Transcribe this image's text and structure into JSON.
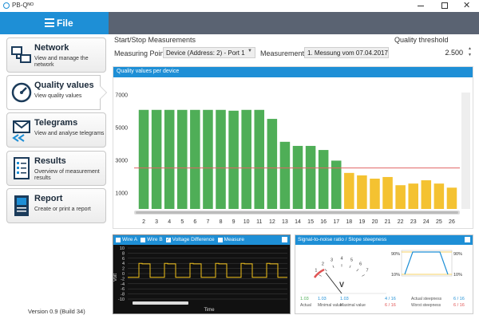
{
  "window": {
    "title": "PB-Qᴺᴼ"
  },
  "file_label": "File",
  "sidebar": [
    {
      "title": "Network",
      "subtitle": "View and manage the network"
    },
    {
      "title": "Quality values",
      "subtitle": "View quality values"
    },
    {
      "title": "Telegrams",
      "subtitle": "View and analyse telegrams"
    },
    {
      "title": "Results",
      "subtitle": "Overview of measurement results"
    },
    {
      "title": "Report",
      "subtitle": "Create or print a report"
    }
  ],
  "version": "Version 0.9 (Build 34)",
  "startstop_label": "Start/Stop Measurements",
  "measuring_point_label": "Measuring Point",
  "measuring_point_value": "Device (Address: 2) - Port 1",
  "measurement_label": "Measurement",
  "measurement_value": "1. Messung vom 07.04.2017",
  "quality_threshold_label": "Quality threshold",
  "quality_threshold_value": "2.500",
  "chart_data": {
    "type": "bar",
    "title": "Quality values per device",
    "categories": [
      "2",
      "3",
      "4",
      "5",
      "6",
      "7",
      "8",
      "9",
      "10",
      "11",
      "12",
      "13",
      "14",
      "15",
      "16",
      "17",
      "18",
      "19",
      "20",
      "21",
      "22",
      "23",
      "24",
      "25",
      "26"
    ],
    "values": [
      6050,
      6050,
      6050,
      6050,
      6050,
      6050,
      6050,
      6000,
      6050,
      6050,
      5500,
      4100,
      3850,
      3850,
      3600,
      2950,
      2200,
      2050,
      1850,
      1950,
      1450,
      1550,
      1750,
      1550,
      1300
    ],
    "threshold": 2500,
    "ylim": [
      0,
      7500
    ],
    "yticks": [
      1000,
      3000,
      5000,
      7000
    ]
  },
  "oscilloscope": {
    "checkboxes": [
      {
        "label": "Wire A",
        "checked": false
      },
      {
        "label": "Wire B",
        "checked": false
      },
      {
        "label": "Voltage Difference",
        "checked": true
      },
      {
        "label": "Measure",
        "checked": false
      }
    ],
    "yticks": [
      "10",
      "8",
      "6",
      "4",
      "2",
      "0",
      "-2",
      "-4",
      "-6",
      "-8",
      "-10"
    ],
    "ylabel": "Volt",
    "xlabel": "Time"
  },
  "snr": {
    "title": "Signal-to-noise ratio / Slope steepness",
    "gauge_ticks": [
      "1",
      "2",
      "3",
      "4",
      "5",
      "6",
      "7"
    ],
    "gauge_unit": "V",
    "pct_top": "90%",
    "pct_bottom": "10%",
    "stats": [
      {
        "value": "1.03",
        "label": "Actual"
      },
      {
        "value": "1.03",
        "label": "Minimal value"
      },
      {
        "value": "1.03",
        "label": "Maximal value"
      }
    ],
    "steepness": [
      {
        "value": "4 / 16",
        "label": "Actual steepness"
      },
      {
        "value": "6 / 16",
        "label": "Worst steepness"
      }
    ],
    "steepness_right": [
      "6 / 16",
      "6 / 16"
    ]
  }
}
